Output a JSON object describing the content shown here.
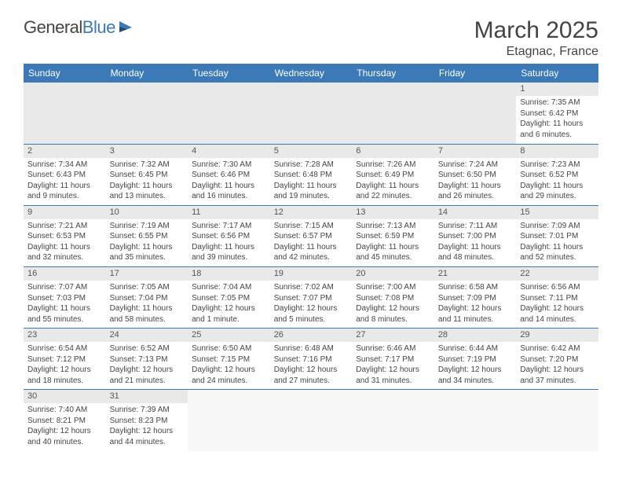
{
  "logo": {
    "text1": "General",
    "text2": "Blue"
  },
  "title": "March 2025",
  "location": "Etagnac, France",
  "colors": {
    "headerBg": "#3b79b7",
    "headerText": "#ffffff",
    "dayNumBg": "#e9e9e9",
    "border": "#3b79b7",
    "text": "#444444"
  },
  "dayHeaders": [
    "Sunday",
    "Monday",
    "Tuesday",
    "Wednesday",
    "Thursday",
    "Friday",
    "Saturday"
  ],
  "weeks": [
    [
      {
        "n": "",
        "sr": "",
        "ss": "",
        "dl": ""
      },
      {
        "n": "",
        "sr": "",
        "ss": "",
        "dl": ""
      },
      {
        "n": "",
        "sr": "",
        "ss": "",
        "dl": ""
      },
      {
        "n": "",
        "sr": "",
        "ss": "",
        "dl": ""
      },
      {
        "n": "",
        "sr": "",
        "ss": "",
        "dl": ""
      },
      {
        "n": "",
        "sr": "",
        "ss": "",
        "dl": ""
      },
      {
        "n": "1",
        "sr": "Sunrise: 7:35 AM",
        "ss": "Sunset: 6:42 PM",
        "dl": "Daylight: 11 hours and 6 minutes."
      }
    ],
    [
      {
        "n": "2",
        "sr": "Sunrise: 7:34 AM",
        "ss": "Sunset: 6:43 PM",
        "dl": "Daylight: 11 hours and 9 minutes."
      },
      {
        "n": "3",
        "sr": "Sunrise: 7:32 AM",
        "ss": "Sunset: 6:45 PM",
        "dl": "Daylight: 11 hours and 13 minutes."
      },
      {
        "n": "4",
        "sr": "Sunrise: 7:30 AM",
        "ss": "Sunset: 6:46 PM",
        "dl": "Daylight: 11 hours and 16 minutes."
      },
      {
        "n": "5",
        "sr": "Sunrise: 7:28 AM",
        "ss": "Sunset: 6:48 PM",
        "dl": "Daylight: 11 hours and 19 minutes."
      },
      {
        "n": "6",
        "sr": "Sunrise: 7:26 AM",
        "ss": "Sunset: 6:49 PM",
        "dl": "Daylight: 11 hours and 22 minutes."
      },
      {
        "n": "7",
        "sr": "Sunrise: 7:24 AM",
        "ss": "Sunset: 6:50 PM",
        "dl": "Daylight: 11 hours and 26 minutes."
      },
      {
        "n": "8",
        "sr": "Sunrise: 7:23 AM",
        "ss": "Sunset: 6:52 PM",
        "dl": "Daylight: 11 hours and 29 minutes."
      }
    ],
    [
      {
        "n": "9",
        "sr": "Sunrise: 7:21 AM",
        "ss": "Sunset: 6:53 PM",
        "dl": "Daylight: 11 hours and 32 minutes."
      },
      {
        "n": "10",
        "sr": "Sunrise: 7:19 AM",
        "ss": "Sunset: 6:55 PM",
        "dl": "Daylight: 11 hours and 35 minutes."
      },
      {
        "n": "11",
        "sr": "Sunrise: 7:17 AM",
        "ss": "Sunset: 6:56 PM",
        "dl": "Daylight: 11 hours and 39 minutes."
      },
      {
        "n": "12",
        "sr": "Sunrise: 7:15 AM",
        "ss": "Sunset: 6:57 PM",
        "dl": "Daylight: 11 hours and 42 minutes."
      },
      {
        "n": "13",
        "sr": "Sunrise: 7:13 AM",
        "ss": "Sunset: 6:59 PM",
        "dl": "Daylight: 11 hours and 45 minutes."
      },
      {
        "n": "14",
        "sr": "Sunrise: 7:11 AM",
        "ss": "Sunset: 7:00 PM",
        "dl": "Daylight: 11 hours and 48 minutes."
      },
      {
        "n": "15",
        "sr": "Sunrise: 7:09 AM",
        "ss": "Sunset: 7:01 PM",
        "dl": "Daylight: 11 hours and 52 minutes."
      }
    ],
    [
      {
        "n": "16",
        "sr": "Sunrise: 7:07 AM",
        "ss": "Sunset: 7:03 PM",
        "dl": "Daylight: 11 hours and 55 minutes."
      },
      {
        "n": "17",
        "sr": "Sunrise: 7:05 AM",
        "ss": "Sunset: 7:04 PM",
        "dl": "Daylight: 11 hours and 58 minutes."
      },
      {
        "n": "18",
        "sr": "Sunrise: 7:04 AM",
        "ss": "Sunset: 7:05 PM",
        "dl": "Daylight: 12 hours and 1 minute."
      },
      {
        "n": "19",
        "sr": "Sunrise: 7:02 AM",
        "ss": "Sunset: 7:07 PM",
        "dl": "Daylight: 12 hours and 5 minutes."
      },
      {
        "n": "20",
        "sr": "Sunrise: 7:00 AM",
        "ss": "Sunset: 7:08 PM",
        "dl": "Daylight: 12 hours and 8 minutes."
      },
      {
        "n": "21",
        "sr": "Sunrise: 6:58 AM",
        "ss": "Sunset: 7:09 PM",
        "dl": "Daylight: 12 hours and 11 minutes."
      },
      {
        "n": "22",
        "sr": "Sunrise: 6:56 AM",
        "ss": "Sunset: 7:11 PM",
        "dl": "Daylight: 12 hours and 14 minutes."
      }
    ],
    [
      {
        "n": "23",
        "sr": "Sunrise: 6:54 AM",
        "ss": "Sunset: 7:12 PM",
        "dl": "Daylight: 12 hours and 18 minutes."
      },
      {
        "n": "24",
        "sr": "Sunrise: 6:52 AM",
        "ss": "Sunset: 7:13 PM",
        "dl": "Daylight: 12 hours and 21 minutes."
      },
      {
        "n": "25",
        "sr": "Sunrise: 6:50 AM",
        "ss": "Sunset: 7:15 PM",
        "dl": "Daylight: 12 hours and 24 minutes."
      },
      {
        "n": "26",
        "sr": "Sunrise: 6:48 AM",
        "ss": "Sunset: 7:16 PM",
        "dl": "Daylight: 12 hours and 27 minutes."
      },
      {
        "n": "27",
        "sr": "Sunrise: 6:46 AM",
        "ss": "Sunset: 7:17 PM",
        "dl": "Daylight: 12 hours and 31 minutes."
      },
      {
        "n": "28",
        "sr": "Sunrise: 6:44 AM",
        "ss": "Sunset: 7:19 PM",
        "dl": "Daylight: 12 hours and 34 minutes."
      },
      {
        "n": "29",
        "sr": "Sunrise: 6:42 AM",
        "ss": "Sunset: 7:20 PM",
        "dl": "Daylight: 12 hours and 37 minutes."
      }
    ],
    [
      {
        "n": "30",
        "sr": "Sunrise: 7:40 AM",
        "ss": "Sunset: 8:21 PM",
        "dl": "Daylight: 12 hours and 40 minutes."
      },
      {
        "n": "31",
        "sr": "Sunrise: 7:39 AM",
        "ss": "Sunset: 8:23 PM",
        "dl": "Daylight: 12 hours and 44 minutes."
      },
      {
        "n": "",
        "sr": "",
        "ss": "",
        "dl": ""
      },
      {
        "n": "",
        "sr": "",
        "ss": "",
        "dl": ""
      },
      {
        "n": "",
        "sr": "",
        "ss": "",
        "dl": ""
      },
      {
        "n": "",
        "sr": "",
        "ss": "",
        "dl": ""
      },
      {
        "n": "",
        "sr": "",
        "ss": "",
        "dl": ""
      }
    ]
  ]
}
